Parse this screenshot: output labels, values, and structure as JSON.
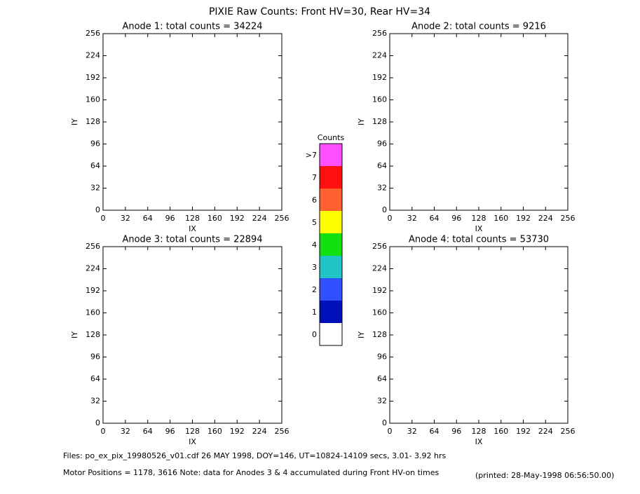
{
  "title": "PIXIE Raw Counts:  Front HV=30, Rear HV=34",
  "chart_data": [
    {
      "type": "heatmap",
      "title": "Anode 1: total counts = 34224",
      "xlabel": "IX",
      "ylabel": "IY",
      "xlim": [
        0,
        256
      ],
      "ylim": [
        0,
        256
      ],
      "xticks": [
        0,
        32,
        64,
        96,
        128,
        160,
        192,
        224,
        256
      ],
      "yticks": [
        0,
        32,
        64,
        96,
        128,
        160,
        192,
        224,
        256
      ]
    },
    {
      "type": "heatmap",
      "title": "Anode 2: total counts = 9216",
      "xlabel": "IX",
      "ylabel": "IY",
      "xlim": [
        0,
        256
      ],
      "ylim": [
        0,
        256
      ],
      "xticks": [
        0,
        32,
        64,
        96,
        128,
        160,
        192,
        224,
        256
      ],
      "yticks": [
        0,
        32,
        64,
        96,
        128,
        160,
        192,
        224,
        256
      ]
    },
    {
      "type": "heatmap",
      "title": "Anode 3: total counts = 22894",
      "xlabel": "IX",
      "ylabel": "IY",
      "xlim": [
        0,
        256
      ],
      "ylim": [
        0,
        256
      ],
      "xticks": [
        0,
        32,
        64,
        96,
        128,
        160,
        192,
        224,
        256
      ],
      "yticks": [
        0,
        32,
        64,
        96,
        128,
        160,
        192,
        224,
        256
      ]
    },
    {
      "type": "heatmap",
      "title": "Anode 4: total counts = 53730",
      "xlabel": "IX",
      "ylabel": "IY",
      "xlim": [
        0,
        256
      ],
      "ylim": [
        0,
        256
      ],
      "xticks": [
        0,
        32,
        64,
        96,
        128,
        160,
        192,
        224,
        256
      ],
      "yticks": [
        0,
        32,
        64,
        96,
        128,
        160,
        192,
        224,
        256
      ]
    }
  ],
  "colorbar": {
    "title": "Counts",
    "labels": [
      "0",
      "1",
      "2",
      "3",
      "4",
      "5",
      "6",
      "7",
      ">7"
    ],
    "colors": [
      "#ffffff",
      "#0010b8",
      "#3050ff",
      "#20c4c4",
      "#10e010",
      "#ffff00",
      "#ff6030",
      "#ff1010",
      "#ff50ff"
    ]
  },
  "footer": {
    "files": "Files: po_ex_pix_19980526_v01.cdf    26 MAY 1998, DOY=146, UT=10824-14109 secs,  3.01- 3.92 hrs",
    "motor": "Motor Positions = 1178, 3616   Note: data for Anodes 3 & 4 accumulated during Front HV-on times",
    "printed": "(printed: 28-May-1998 06:56:50.00)"
  }
}
